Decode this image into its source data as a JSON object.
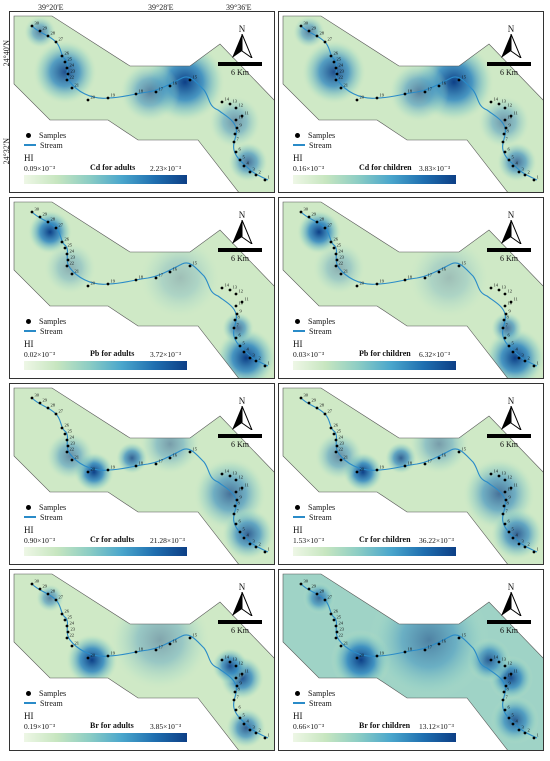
{
  "coords": {
    "lon": [
      "39°20'E",
      "39°28'E",
      "39°36'E"
    ],
    "lat": [
      "24°40'N",
      "24°32'N"
    ]
  },
  "common": {
    "north": "N",
    "scale": "6 Km",
    "samples": "Samples",
    "stream": "Stream",
    "hi": "HI"
  },
  "sample_labels": [
    "1",
    "2",
    "3",
    "4",
    "5",
    "6",
    "7",
    "8",
    "9",
    "10",
    "11",
    "12",
    "13",
    "14",
    "15",
    "16",
    "17",
    "18",
    "19",
    "20",
    "21",
    "22",
    "23",
    "24",
    "25",
    "26",
    "27",
    "28",
    "29",
    "30"
  ],
  "colors": {
    "low": "#eef7e6",
    "high": "#0d3f86",
    "stream": "#2a8bc8"
  },
  "panels": [
    {
      "title": "Cd for adults",
      "min": "0.09×10⁻³",
      "max": "2.23×10⁻³"
    },
    {
      "title": "Cd for children",
      "min": "0.16×10⁻³",
      "max": "3.83×10⁻³"
    },
    {
      "title": "Pb for adults",
      "min": "0.02×10⁻³",
      "max": "3.72×10⁻³"
    },
    {
      "title": "Pb for children",
      "min": "0.03×10⁻³",
      "max": "6.32×10⁻³"
    },
    {
      "title": "Cr for adults",
      "min": "0.90×10⁻³",
      "max": "21.28×10⁻³"
    },
    {
      "title": "Cr for children",
      "min": "1.53×10⁻³",
      "max": "36.22×10⁻³"
    },
    {
      "title": "Br for adults",
      "min": "0.19×10⁻³",
      "max": "3.85×10⁻³"
    },
    {
      "title": "Br for children",
      "min": "0.66×10⁻³",
      "max": "13.12×10⁻³"
    }
  ]
}
